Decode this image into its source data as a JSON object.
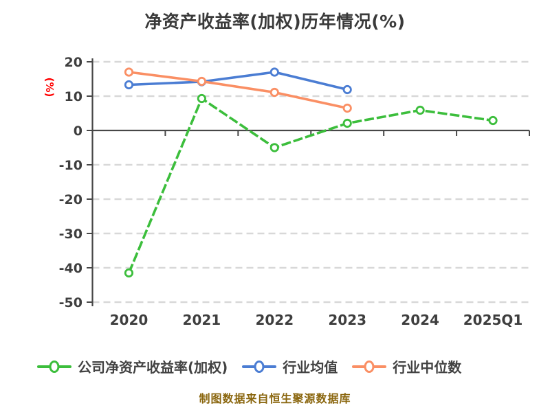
{
  "title": "净资产收益率(加权)历年情况(%)",
  "caption": "制图数据来自恒生聚源数据库",
  "chart_data": {
    "type": "line",
    "title": "净资产收益率(加权)历年情况(%)",
    "xlabel": "",
    "ylabel": "(%)",
    "ylabel_color": "#ff0000",
    "categories": [
      "2020",
      "2021",
      "2022",
      "2023",
      "2024",
      "2025Q1"
    ],
    "series": [
      {
        "name": "公司净资产收益率(加权)",
        "color": "#3cbe3c",
        "line_style": "dashed",
        "values": [
          -41.5,
          9.3,
          -5.0,
          2.1,
          5.9,
          2.9
        ]
      },
      {
        "name": "行业均值",
        "color": "#4b7dd3",
        "line_style": "solid",
        "values": [
          13.3,
          14.2,
          17.0,
          11.9,
          null,
          null
        ]
      },
      {
        "name": "行业中位数",
        "color": "#fa8f64",
        "line_style": "solid",
        "values": [
          17.0,
          14.3,
          11.1,
          6.5,
          null,
          null
        ]
      }
    ],
    "ylim": [
      -50,
      20
    ],
    "y_ticks": [
      20,
      10,
      0,
      -10,
      -20,
      -30,
      -40,
      -50
    ],
    "grid": "horizontal dashed",
    "grid_color": "#d8d8d8",
    "axis_color": "#474747",
    "tick_label_color": "#3e3e3e",
    "legend_position": "bottom",
    "marker": "open-circle"
  }
}
